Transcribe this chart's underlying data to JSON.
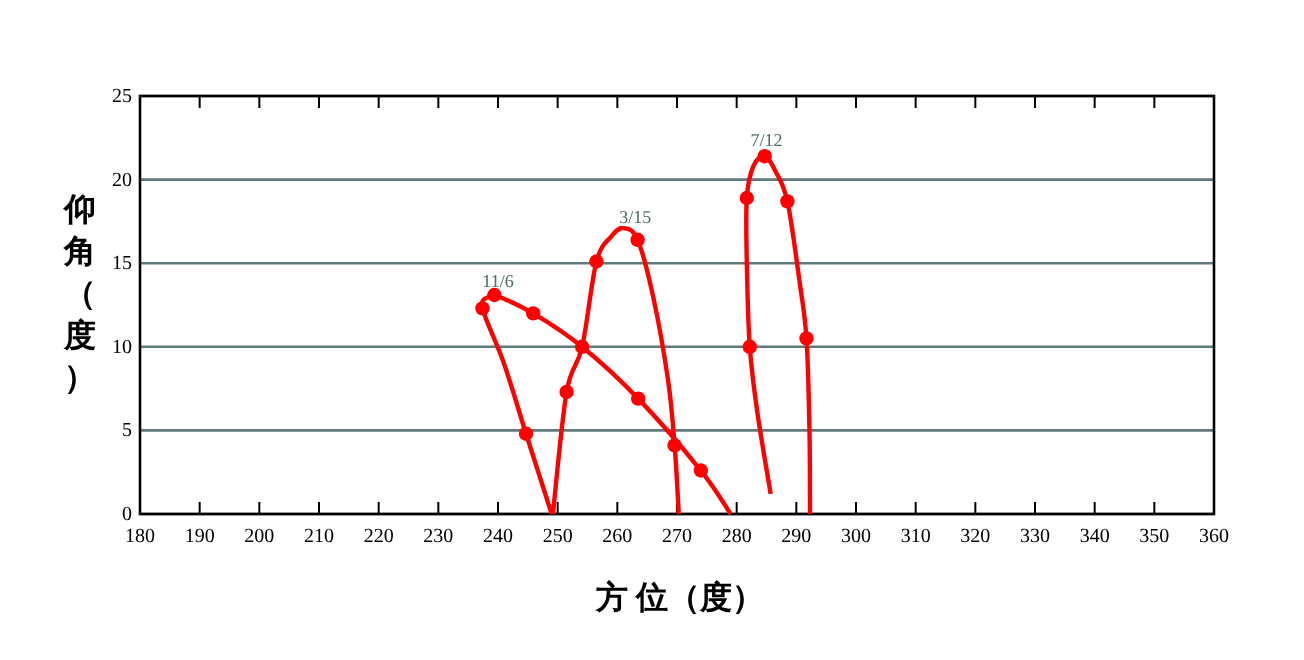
{
  "chart_data": {
    "type": "line",
    "xlabel": "方 位（度）",
    "ylabel": "仰角（度）",
    "xlim": [
      180,
      360
    ],
    "ylim": [
      0,
      25
    ],
    "xticks": [
      180,
      190,
      200,
      210,
      220,
      230,
      240,
      250,
      260,
      270,
      280,
      290,
      300,
      310,
      320,
      330,
      340,
      350,
      360
    ],
    "yticks": [
      0,
      5,
      10,
      15,
      20,
      25
    ],
    "grid": "y",
    "series": [
      {
        "type": "line",
        "marker": "none",
        "color": "#ff0000",
        "x": [
          249,
          244.7,
          241,
          237.4,
          238.5,
          239.4,
          245.9,
          254.1,
          263.5,
          274,
          279
        ],
        "values": [
          0,
          4.8,
          9,
          12.3,
          13.0,
          13.1,
          12.0,
          10.0,
          6.9,
          2.6,
          0
        ]
      },
      {
        "type": "scatter",
        "marker": "circle",
        "color": "#ff0000",
        "x": [
          237.4,
          239.4,
          245.9,
          254.1,
          263.5,
          274,
          244.7
        ],
        "values": [
          12.3,
          13.1,
          12.0,
          10.0,
          6.9,
          2.6,
          4.8
        ]
      },
      {
        "type": "line",
        "marker": "none",
        "color": "#ff0000",
        "x": [
          249.2,
          251.5,
          254.1,
          256.5,
          259,
          261,
          263.4,
          266,
          268.5,
          269.6,
          270.3
        ],
        "values": [
          0,
          7.3,
          10,
          15.1,
          16.6,
          17.1,
          16.4,
          13,
          8,
          4.1,
          0
        ]
      },
      {
        "type": "scatter",
        "marker": "circle",
        "color": "#ff0000",
        "x": [
          251.5,
          256.5,
          263.4,
          269.6
        ],
        "values": [
          7.3,
          15.1,
          16.4,
          4.1
        ]
      },
      {
        "type": "line",
        "marker": "none",
        "color": "#ff0000",
        "x": [
          285.7,
          283.5,
          282.2,
          281.7,
          281.7,
          282.8,
          284.7,
          286.5,
          288.5,
          290.5,
          291.7,
          292.2,
          292.3
        ],
        "values": [
          1.2,
          6,
          10,
          15,
          18.9,
          20.8,
          21.4,
          20.5,
          18.7,
          14,
          10.5,
          5,
          0
        ]
      },
      {
        "type": "scatter",
        "marker": "circle",
        "color": "#ff0000",
        "x": [
          282.2,
          281.7,
          284.7,
          288.5,
          291.7
        ],
        "values": [
          10,
          18.9,
          21.4,
          18.7,
          10.5
        ]
      }
    ],
    "annotations": [
      {
        "text": "11/6",
        "x": 240,
        "y": 13.6
      },
      {
        "text": "3/15",
        "x": 263,
        "y": 17.4
      },
      {
        "text": "7/12",
        "x": 285,
        "y": 22
      }
    ]
  }
}
